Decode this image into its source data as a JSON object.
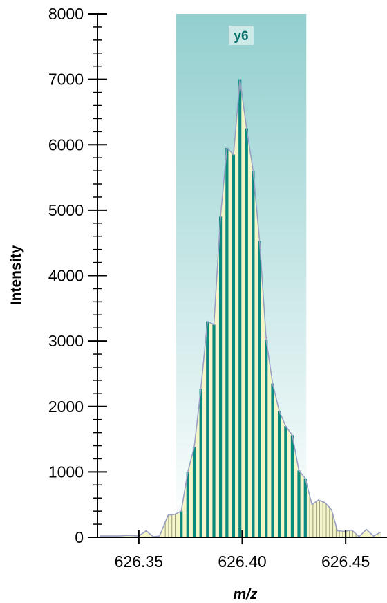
{
  "chart_data": {
    "type": "bar",
    "xlabel": "m/z",
    "ylabel": "Intensity",
    "xlim": [
      626.33,
      626.47
    ],
    "ylim": [
      0,
      8000
    ],
    "x_ticks": [
      {
        "value": 626.35,
        "label": "626.35"
      },
      {
        "value": 626.4,
        "label": "626.40"
      },
      {
        "value": 626.45,
        "label": "626.45"
      }
    ],
    "y_ticks": [
      {
        "value": 0,
        "label": "0"
      },
      {
        "value": 1000,
        "label": "1000"
      },
      {
        "value": 2000,
        "label": "2000"
      },
      {
        "value": 3000,
        "label": "3000"
      },
      {
        "value": 4000,
        "label": "4000"
      },
      {
        "value": 5000,
        "label": "5000"
      },
      {
        "value": 6000,
        "label": "6000"
      },
      {
        "value": 7000,
        "label": "7000"
      },
      {
        "value": 8000,
        "label": "8000"
      }
    ],
    "y_minor_step": 200,
    "grid": false,
    "band": {
      "label": "y6",
      "x_range": [
        626.368,
        626.431
      ],
      "color_top": "#93cfcf",
      "color_bottom": "#ffffff"
    },
    "bars": {
      "color": "#0a8a7e",
      "x": [
        626.3705,
        626.3737,
        626.3768,
        626.38,
        626.3832,
        626.3863,
        626.3895,
        626.3926,
        626.3958,
        626.3989,
        626.4021,
        626.4053,
        626.4084,
        626.4116,
        626.4147,
        626.4179,
        626.421,
        626.4242,
        626.4274,
        626.4305
      ],
      "values": [
        400,
        1000,
        1380,
        2270,
        3300,
        3250,
        4900,
        5950,
        5850,
        7000,
        6250,
        5600,
        4530,
        3020,
        2350,
        1930,
        1700,
        1560,
        1020,
        900
      ]
    },
    "profile": {
      "line_color": "#9aa0c4",
      "fill_color": "#f4f5c8",
      "x": [
        626.331,
        626.335,
        626.34,
        626.345,
        626.35,
        626.3535,
        626.357,
        626.36,
        626.3642,
        626.3674,
        626.3705,
        626.3737,
        626.3768,
        626.38,
        626.3832,
        626.3863,
        626.3895,
        626.3926,
        626.3958,
        626.3989,
        626.4021,
        626.4053,
        626.4084,
        626.4116,
        626.4147,
        626.4179,
        626.421,
        626.4242,
        626.4274,
        626.4305,
        626.4337,
        626.4368,
        626.44,
        626.4432,
        626.446,
        626.4495,
        626.453,
        626.4565,
        626.46,
        626.4635,
        626.467
      ],
      "y": [
        20,
        20,
        20,
        30,
        20,
        100,
        10,
        20,
        340,
        350,
        400,
        1000,
        1380,
        2270,
        3300,
        3250,
        4900,
        5950,
        5850,
        7000,
        6250,
        5600,
        4530,
        3020,
        2350,
        1930,
        1700,
        1560,
        1020,
        900,
        500,
        570,
        530,
        420,
        100,
        90,
        110,
        10,
        120,
        20,
        80
      ]
    },
    "hatch_regions": [
      [
        626.358,
        626.368
      ],
      [
        626.431,
        626.456
      ]
    ]
  }
}
